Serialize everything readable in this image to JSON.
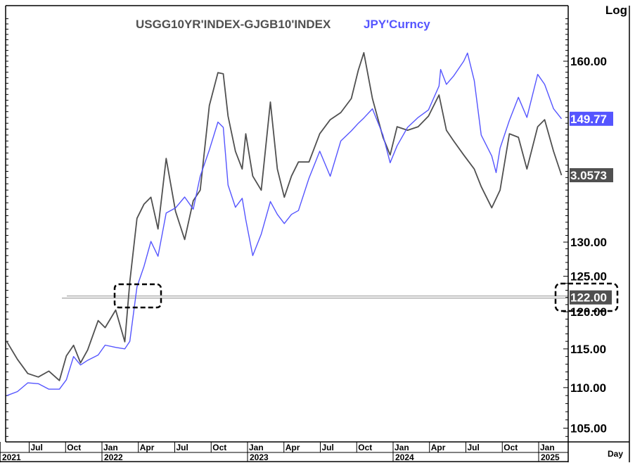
{
  "chart_data": {
    "type": "line",
    "title": "",
    "legend": [
      "USGG10YR'INDEX-GJGB10'INDEX",
      "JPY'Curncy"
    ],
    "legend_placement": "top-center",
    "y_scale": "log",
    "y_scale_label": "Log",
    "x_scale_label": "Day",
    "ylim": [
      102,
      168
    ],
    "xlim": [
      "2021-05-01",
      "2025-03-05"
    ],
    "y_tick_labels": [
      "160.00",
      "130.00",
      "125.00",
      "120.00",
      "115.00",
      "110.00",
      "105.00"
    ],
    "y_ticks": [
      160,
      130,
      125,
      120,
      115,
      110,
      105
    ],
    "x_month_ticks": [
      {
        "label": "Jul",
        "date": "2021-07-01"
      },
      {
        "label": "Oct",
        "date": "2021-10-01"
      },
      {
        "label": "Jan",
        "date": "2022-01-01"
      },
      {
        "label": "Apr",
        "date": "2022-04-01"
      },
      {
        "label": "Jul",
        "date": "2022-07-01"
      },
      {
        "label": "Oct",
        "date": "2022-10-01"
      },
      {
        "label": "Jan",
        "date": "2023-01-01"
      },
      {
        "label": "Apr",
        "date": "2023-04-01"
      },
      {
        "label": "Jul",
        "date": "2023-07-01"
      },
      {
        "label": "Oct",
        "date": "2023-10-01"
      },
      {
        "label": "Jan",
        "date": "2024-01-01"
      },
      {
        "label": "Apr",
        "date": "2024-04-01"
      },
      {
        "label": "Jul",
        "date": "2024-07-01"
      },
      {
        "label": "Oct",
        "date": "2024-10-01"
      },
      {
        "label": "Jan",
        "date": "2025-01-01"
      }
    ],
    "x_year_ticks": [
      {
        "label": "2021",
        "date": "2021-01-01"
      },
      {
        "label": "2022",
        "date": "2022-01-01"
      },
      {
        "label": "2023",
        "date": "2023-01-01"
      },
      {
        "label": "2024",
        "date": "2024-01-01"
      },
      {
        "label": "2025",
        "date": "2025-01-01"
      }
    ],
    "grid": false,
    "horizontal_line": {
      "value": 122.0,
      "label": "122.00",
      "color": "#999999"
    },
    "last_value_labels": [
      {
        "series": "JPY'Curncy",
        "label": "149.77",
        "color": "#5555ff"
      },
      {
        "series": "USGG10YR'INDEX-GJGB10'INDEX",
        "label": "3.0573",
        "color": "#505050"
      }
    ],
    "series": [
      {
        "name": "USGG10YR'INDEX-GJGB10'INDEX",
        "color": "#505050",
        "axis": "overlay",
        "points": [
          [
            "2021-05-06",
            1.64
          ],
          [
            "2021-06-02",
            1.49
          ],
          [
            "2021-06-28",
            1.37
          ],
          [
            "2021-07-24",
            1.34
          ],
          [
            "2021-08-20",
            1.39
          ],
          [
            "2021-09-16",
            1.31
          ],
          [
            "2021-10-03",
            1.52
          ],
          [
            "2021-10-21",
            1.61
          ],
          [
            "2021-11-08",
            1.46
          ],
          [
            "2021-11-26",
            1.57
          ],
          [
            "2021-12-22",
            1.82
          ],
          [
            "2022-01-09",
            1.76
          ],
          [
            "2022-02-05",
            1.91
          ],
          [
            "2022-02-28",
            1.64
          ],
          [
            "2022-03-10",
            2.15
          ],
          [
            "2022-03-28",
            2.69
          ],
          [
            "2022-04-15",
            2.81
          ],
          [
            "2022-05-02",
            2.87
          ],
          [
            "2022-05-20",
            2.6
          ],
          [
            "2022-06-10",
            3.2
          ],
          [
            "2022-07-03",
            2.75
          ],
          [
            "2022-07-26",
            2.51
          ],
          [
            "2022-08-17",
            2.84
          ],
          [
            "2022-09-04",
            2.93
          ],
          [
            "2022-09-27",
            3.65
          ],
          [
            "2022-10-18",
            3.93
          ],
          [
            "2022-11-01",
            3.92
          ],
          [
            "2022-11-13",
            3.56
          ],
          [
            "2022-12-01",
            3.26
          ],
          [
            "2022-12-18",
            3.11
          ],
          [
            "2022-12-27",
            3.41
          ],
          [
            "2023-01-14",
            3.05
          ],
          [
            "2023-02-05",
            2.93
          ],
          [
            "2023-02-28",
            3.68
          ],
          [
            "2023-03-15",
            3.11
          ],
          [
            "2023-04-02",
            2.87
          ],
          [
            "2023-04-20",
            3.05
          ],
          [
            "2023-05-07",
            3.17
          ],
          [
            "2023-06-03",
            3.17
          ],
          [
            "2023-06-30",
            3.41
          ],
          [
            "2023-07-26",
            3.53
          ],
          [
            "2023-08-22",
            3.59
          ],
          [
            "2023-09-18",
            3.71
          ],
          [
            "2023-10-05",
            3.95
          ],
          [
            "2023-10-19",
            4.1
          ],
          [
            "2023-11-10",
            3.71
          ],
          [
            "2023-12-06",
            3.38
          ],
          [
            "2023-12-24",
            3.23
          ],
          [
            "2024-01-11",
            3.47
          ],
          [
            "2024-02-07",
            3.44
          ],
          [
            "2024-03-03",
            3.47
          ],
          [
            "2024-03-29",
            3.56
          ],
          [
            "2024-04-25",
            3.74
          ],
          [
            "2024-05-13",
            3.44
          ],
          [
            "2024-05-31",
            3.35
          ],
          [
            "2024-06-26",
            3.23
          ],
          [
            "2024-07-22",
            3.11
          ],
          [
            "2024-08-09",
            2.96
          ],
          [
            "2024-09-05",
            2.78
          ],
          [
            "2024-09-26",
            2.93
          ],
          [
            "2024-10-19",
            3.41
          ],
          [
            "2024-11-11",
            3.38
          ],
          [
            "2024-12-02",
            3.11
          ],
          [
            "2024-12-29",
            3.47
          ],
          [
            "2025-01-16",
            3.53
          ],
          [
            "2025-02-08",
            3.26
          ],
          [
            "2025-02-28",
            3.0573
          ]
        ]
      },
      {
        "name": "JPY'Curncy",
        "color": "#5555ff",
        "axis": "right",
        "points": [
          [
            "2021-05-06",
            109.0
          ],
          [
            "2021-06-02",
            109.5
          ],
          [
            "2021-06-28",
            110.6
          ],
          [
            "2021-07-24",
            110.5
          ],
          [
            "2021-08-20",
            109.8
          ],
          [
            "2021-09-16",
            109.8
          ],
          [
            "2021-10-03",
            111.0
          ],
          [
            "2021-10-21",
            114.0
          ],
          [
            "2021-11-08",
            112.9
          ],
          [
            "2021-11-26",
            113.5
          ],
          [
            "2021-12-22",
            114.2
          ],
          [
            "2022-01-09",
            115.5
          ],
          [
            "2022-02-05",
            115.2
          ],
          [
            "2022-02-28",
            115.0
          ],
          [
            "2022-03-10",
            116.0
          ],
          [
            "2022-03-28",
            123.5
          ],
          [
            "2022-04-15",
            126.4
          ],
          [
            "2022-05-02",
            130.1
          ],
          [
            "2022-05-20",
            127.9
          ],
          [
            "2022-06-10",
            134.4
          ],
          [
            "2022-07-03",
            135.2
          ],
          [
            "2022-07-26",
            136.9
          ],
          [
            "2022-08-17",
            135.0
          ],
          [
            "2022-09-04",
            140.2
          ],
          [
            "2022-09-27",
            144.5
          ],
          [
            "2022-10-18",
            149.2
          ],
          [
            "2022-11-01",
            148.3
          ],
          [
            "2022-11-13",
            138.8
          ],
          [
            "2022-12-01",
            135.3
          ],
          [
            "2022-12-18",
            136.7
          ],
          [
            "2022-12-27",
            133.4
          ],
          [
            "2023-01-14",
            128.0
          ],
          [
            "2023-02-05",
            131.2
          ],
          [
            "2023-02-28",
            136.2
          ],
          [
            "2023-03-15",
            134.2
          ],
          [
            "2023-04-02",
            132.8
          ],
          [
            "2023-04-20",
            134.2
          ],
          [
            "2023-05-07",
            134.8
          ],
          [
            "2023-06-03",
            139.9
          ],
          [
            "2023-06-30",
            144.3
          ],
          [
            "2023-07-26",
            140.2
          ],
          [
            "2023-08-22",
            146.0
          ],
          [
            "2023-09-18",
            147.7
          ],
          [
            "2023-10-05",
            149.0
          ],
          [
            "2023-10-19",
            149.9
          ],
          [
            "2023-11-10",
            151.5
          ],
          [
            "2023-12-06",
            147.0
          ],
          [
            "2023-12-24",
            142.4
          ],
          [
            "2024-01-11",
            145.2
          ],
          [
            "2024-02-07",
            148.3
          ],
          [
            "2024-03-03",
            150.0
          ],
          [
            "2024-03-29",
            151.3
          ],
          [
            "2024-04-25",
            155.5
          ],
          [
            "2024-04-29",
            158.5
          ],
          [
            "2024-05-13",
            155.8
          ],
          [
            "2024-05-31",
            157.3
          ],
          [
            "2024-06-26",
            160.0
          ],
          [
            "2024-07-05",
            161.5
          ],
          [
            "2024-07-22",
            156.5
          ],
          [
            "2024-08-09",
            147.0
          ],
          [
            "2024-09-05",
            143.5
          ],
          [
            "2024-09-16",
            140.8
          ],
          [
            "2024-09-26",
            144.8
          ],
          [
            "2024-10-19",
            149.5
          ],
          [
            "2024-11-11",
            153.5
          ],
          [
            "2024-12-02",
            150.0
          ],
          [
            "2024-12-29",
            157.6
          ],
          [
            "2025-01-16",
            155.8
          ],
          [
            "2025-02-08",
            151.5
          ],
          [
            "2025-02-28",
            149.77
          ]
        ]
      }
    ]
  }
}
